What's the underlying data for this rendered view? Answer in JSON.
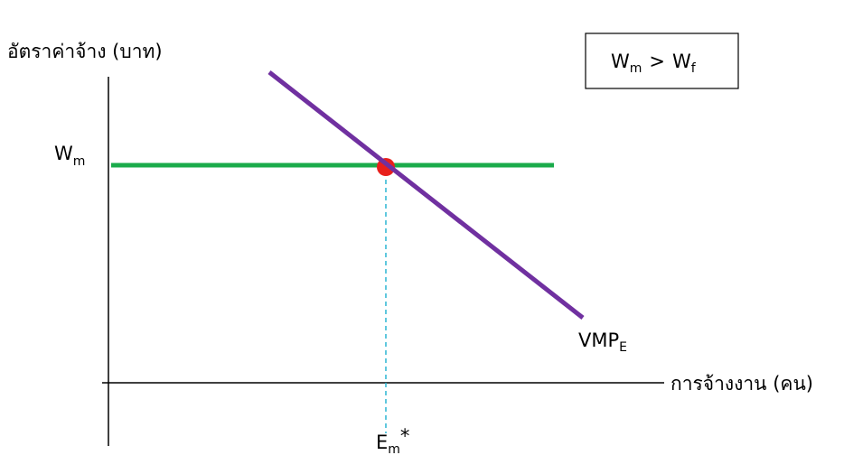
{
  "y_axis_label": "อัตราค่าจ้าง (บาท)",
  "x_axis_label": "การจ้างงาน (คน)",
  "condition_box": {
    "left": {
      "main": "W",
      "sub": "m"
    },
    "operator": ">",
    "right": {
      "main": "W",
      "sub": "f"
    }
  },
  "wage_label": {
    "main": "W",
    "sub": "m"
  },
  "curve_label": {
    "main": "VMP",
    "sub": "E"
  },
  "employment_label": {
    "main": "E",
    "sub": "m",
    "sup": "*"
  }
}
